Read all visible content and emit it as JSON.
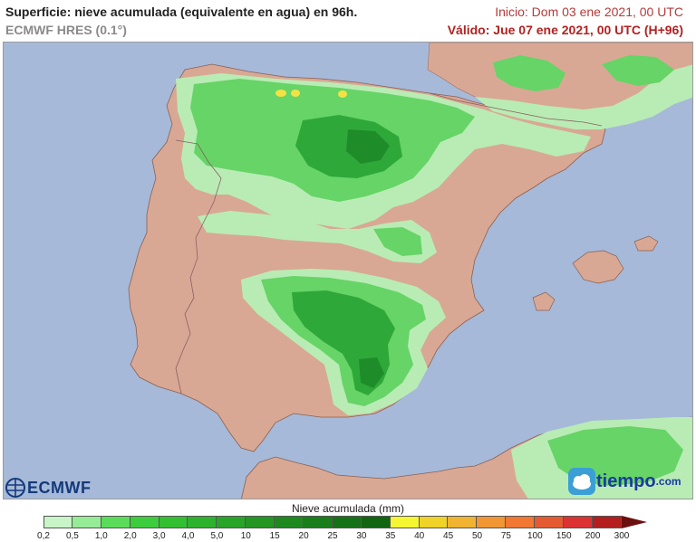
{
  "header": {
    "title": "Superficie: nieve acumulada (equivalente en agua) en 96h.",
    "model": "ECMWF HRES (0.1°)",
    "init": "Inicio: Dom 03 ene 2021, 00 UTC",
    "valid": "Válido: Jue 07 ene 2021, 00 UTC (H+96)"
  },
  "logos": {
    "ecmwf": "ECMWF",
    "tiempo": "tiempo",
    "tiempo_suffix": ".com"
  },
  "legend": {
    "title": "Nieve acumulada (mm)",
    "ticks": [
      "0,2",
      "0,5",
      "1,0",
      "2,0",
      "3,0",
      "4,0",
      "5,0",
      "10",
      "15",
      "20",
      "25",
      "30",
      "35",
      "40",
      "45",
      "50",
      "75",
      "100",
      "150",
      "200",
      "300"
    ],
    "colors": [
      "#c8f5c8",
      "#96eb96",
      "#5adc5a",
      "#3ccd3c",
      "#32c032",
      "#2db22d",
      "#28a528",
      "#239623",
      "#1e8a1e",
      "#1a7e1a",
      "#167216",
      "#126612",
      "#f5f532",
      "#f0d228",
      "#f0b432",
      "#f09632",
      "#f07832",
      "#e65a32",
      "#dc3232",
      "#b41e1e"
    ],
    "arrow_color": "#6b1010"
  },
  "colors": {
    "sea": "#a6b9d9",
    "land": "#d9a895",
    "snow_light": "#b9ecb5",
    "snow_mid": "#66d466",
    "snow_dark": "#2fa83a",
    "snow_deep": "#1f8c2a",
    "snow_yellow": "#f4e245"
  }
}
